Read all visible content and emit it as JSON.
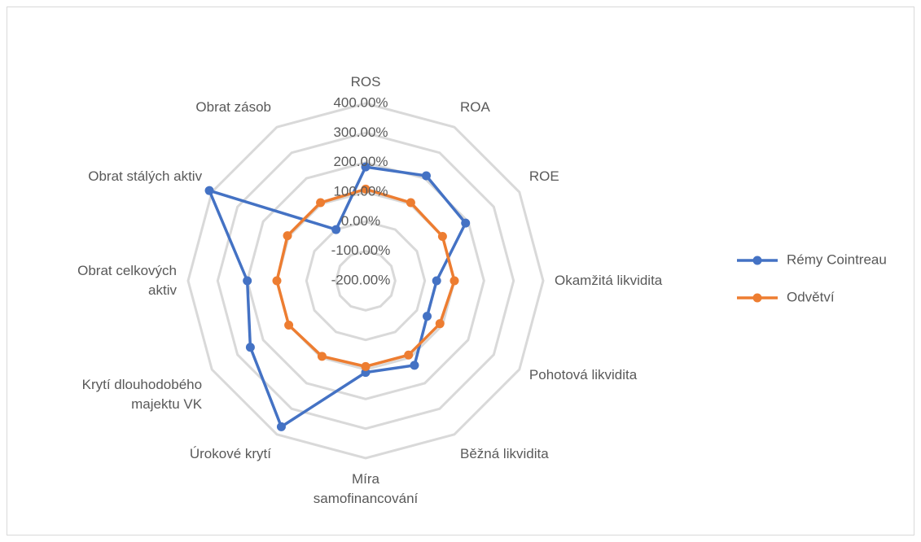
{
  "chart_data": {
    "type": "radar",
    "categories": [
      "ROS",
      "ROA",
      "ROE",
      "Okamžitá likvidita",
      "Pohotová likvidita",
      "Běžná likvidita",
      "Míra\nsamofinancování",
      "Úrokové krytí",
      "Krytí dlouhodobého\nmajektu VK",
      "Obrat celkových\naktiv",
      "Obrat stálých aktiv",
      "Obrat zásob"
    ],
    "series": [
      {
        "name": "Rémy Cointreau",
        "color": "#4472c4",
        "values": [
          185,
          210,
          190,
          40,
          40,
          130,
          110,
          370,
          250,
          200,
          410,
          0
        ]
      },
      {
        "name": "Odvětví",
        "color": "#ed7d31",
        "values": [
          110,
          105,
          100,
          100,
          90,
          90,
          90,
          95,
          100,
          100,
          105,
          105
        ]
      }
    ],
    "ylim": [
      -200,
      400
    ],
    "yticks": [
      {
        "value": -200,
        "label": "-200.00%"
      },
      {
        "value": -100,
        "label": "-100.00%"
      },
      {
        "value": 0,
        "label": "0.00%"
      },
      {
        "value": 100,
        "label": "100.00%"
      },
      {
        "value": 200,
        "label": "200.00%"
      },
      {
        "value": 300,
        "label": "300.00%"
      },
      {
        "value": 400,
        "label": "400.00%"
      }
    ],
    "grid": true,
    "legend": "right"
  }
}
